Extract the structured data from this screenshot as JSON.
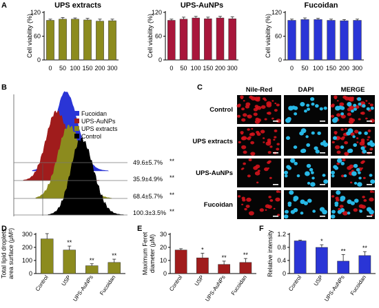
{
  "panel_letters": {
    "a": "A",
    "b": "B",
    "c": "C",
    "d": "D",
    "e": "E",
    "f": "F"
  },
  "colors": {
    "olive": "#8c8b1e",
    "crimson": "#a8163b",
    "blue": "#2a35d6",
    "darkred": "#a01c1c",
    "black": "#000000"
  },
  "chart_data": [
    {
      "id": "A1",
      "type": "bar",
      "title": "UPS extracts",
      "ylabel": "Cell viability  (%)",
      "categories": [
        "0",
        "50",
        "100",
        "150",
        "200",
        "300"
      ],
      "values": [
        100,
        103,
        103,
        101,
        98,
        99
      ],
      "errors": [
        3,
        4,
        3,
        4,
        5,
        4
      ],
      "ylim": [
        0,
        120
      ],
      "yticks": [
        0,
        60,
        120
      ],
      "color": "#8c8b1e"
    },
    {
      "id": "A2",
      "type": "bar",
      "title": "UPS-AuNPs",
      "ylabel": "Cell viability  (%)",
      "categories": [
        "0",
        "50",
        "100",
        "150",
        "200",
        "300"
      ],
      "values": [
        100,
        103,
        106,
        104,
        106,
        104
      ],
      "errors": [
        3,
        5,
        4,
        4,
        4,
        5
      ],
      "ylim": [
        0,
        120
      ],
      "yticks": [
        0,
        60,
        120
      ],
      "color": "#a8163b"
    },
    {
      "id": "A3",
      "type": "bar",
      "title": "Fucoidan",
      "ylabel": "Cell viability  (%)",
      "categories": [
        "0",
        "50",
        "100",
        "150",
        "200",
        "300"
      ],
      "values": [
        100,
        102,
        102,
        100,
        99,
        100
      ],
      "errors": [
        3,
        4,
        3,
        3,
        3,
        3
      ],
      "ylim": [
        0,
        120
      ],
      "yticks": [
        0,
        60,
        120
      ],
      "color": "#2a35d6"
    },
    {
      "id": "B",
      "type": "histogram",
      "legend": [
        "Fucoidan",
        "UPS-AuNPs",
        "UPS extracts",
        "Control"
      ],
      "legend_colors": [
        "#2a35d6",
        "#a01c1c",
        "#8c8b1e",
        "#000000"
      ],
      "labels": [
        "49.6±5.7%",
        "35.9±4.9%",
        "68.4±5.7%",
        "100.3±3.5%"
      ],
      "stars": [
        "**",
        "**",
        "**",
        "**"
      ]
    },
    {
      "id": "D",
      "type": "bar",
      "ylabel": "Total lipid droplets area surface (μM²)",
      "categories": [
        "Control",
        "USP",
        "UPS-AuNPs",
        "Fucoidan"
      ],
      "values": [
        265,
        180,
        60,
        85
      ],
      "errors": [
        40,
        30,
        15,
        25
      ],
      "stars": [
        "",
        "**",
        "**",
        "**"
      ],
      "ylim": [
        0,
        300
      ],
      "yticks": [
        0,
        100,
        200,
        300
      ],
      "color": "#8c8b1e"
    },
    {
      "id": "E",
      "type": "bar",
      "ylabel": "Maximum Feret diameter (μM)",
      "categories": [
        "Control",
        "USP",
        "UPS-AuNPs",
        "Fucoidan"
      ],
      "values": [
        18,
        12,
        7,
        8.5
      ],
      "errors": [
        1,
        3.5,
        2.5,
        3
      ],
      "stars": [
        "",
        "*",
        "**",
        "**"
      ],
      "ylim": [
        0,
        30
      ],
      "yticks": [
        0,
        10,
        20,
        30
      ],
      "color": "#a01c1c"
    },
    {
      "id": "F",
      "type": "bar",
      "ylabel": "Relative intensity",
      "categories": [
        "Control",
        "USP",
        "UPS-AuNPs",
        "Fucoidan"
      ],
      "values": [
        1.0,
        0.8,
        0.38,
        0.55
      ],
      "errors": [
        0.02,
        0.08,
        0.2,
        0.12
      ],
      "stars": [
        "",
        "*",
        "**",
        "**"
      ],
      "ylim": [
        0,
        1.2
      ],
      "yticks": [
        0,
        0.4,
        0.8,
        1.2
      ],
      "color": "#2a35d6"
    }
  ],
  "microscopy": {
    "columns": [
      "Nile-Red",
      "DAPI",
      "MERGE"
    ],
    "rows": [
      "Control",
      "UPS extracts",
      "UPS-AuNPs",
      "Fucoidan"
    ],
    "image_colors": {
      "nile": "#d4141c",
      "dapi": "#27b8e6",
      "bg": "#050505"
    }
  }
}
